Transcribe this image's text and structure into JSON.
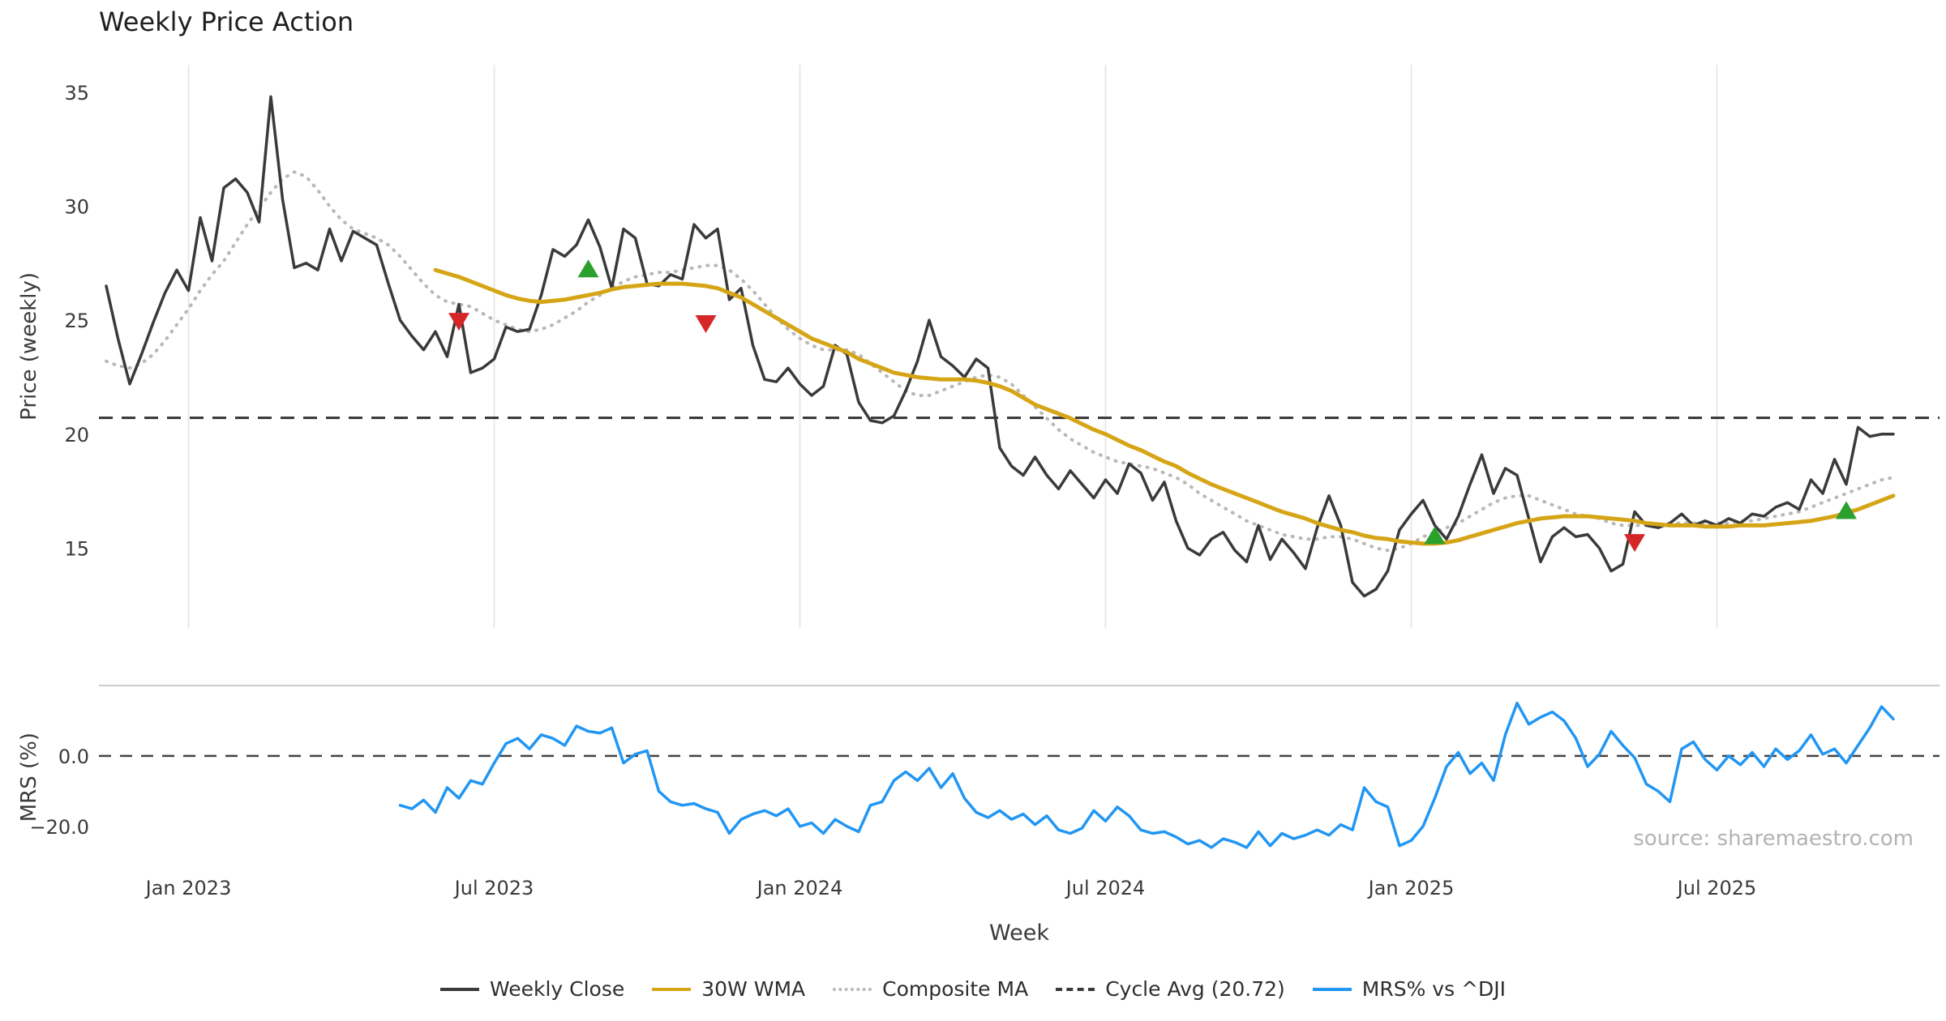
{
  "title": "Weekly Price Action",
  "source_note": "source: sharemaestro.com",
  "colors": {
    "close": "#3a3a3a",
    "wma": "#d6a517",
    "composite": "#b8b8b8",
    "cycle": "#333333",
    "mrs": "#2196f3",
    "buy": "#2ca02c",
    "sell": "#d62728",
    "grid": "#e8e8e8",
    "separator": "#cccccc",
    "tick_text": "#3a3a3a"
  },
  "legend": {
    "items": [
      {
        "label": "Weekly Close",
        "line": "solid",
        "color": "#3a3a3a"
      },
      {
        "label": "30W WMA",
        "line": "solid",
        "color": "#d6a517"
      },
      {
        "label": "Composite MA",
        "line": "dotted",
        "color": "#b8b8b8"
      },
      {
        "label": "Cycle Avg (20.72)",
        "line": "dashed",
        "color": "#3a3a3a"
      },
      {
        "label": "MRS% vs ^DJI",
        "line": "solid",
        "color": "#2196f3"
      }
    ]
  },
  "chart_data": {
    "type": "line",
    "title": "Weekly Price Action",
    "x_label": "Week",
    "x_unit": "week_index",
    "n_points": 153,
    "x_ticks": [
      {
        "i": 7,
        "label": "Jan 2023"
      },
      {
        "i": 33,
        "label": "Jul 2023"
      },
      {
        "i": 59,
        "label": "Jan 2024"
      },
      {
        "i": 85,
        "label": "Jul 2024"
      },
      {
        "i": 111,
        "label": "Jan 2025"
      },
      {
        "i": 137,
        "label": "Jul 2025"
      }
    ],
    "panels": [
      {
        "id": "price",
        "y_label": "Price (weekly)",
        "y_ticks": [
          35,
          30,
          25,
          20,
          15
        ],
        "y_range": [
          11.5,
          36.2
        ],
        "grid_vertical": true,
        "hline": {
          "value": 20.72,
          "label": "Cycle Avg (20.72)",
          "style": "dashed"
        },
        "series": [
          {
            "name": "Weekly Close",
            "color_key": "close",
            "style": "solid",
            "start_index": 0,
            "values": [
              26.5,
              24.2,
              22.2,
              23.5,
              24.9,
              26.2,
              27.2,
              26.3,
              29.5,
              27.6,
              30.8,
              31.2,
              30.6,
              29.3,
              34.8,
              30.3,
              27.3,
              27.5,
              27.2,
              29.0,
              27.6,
              28.9,
              28.6,
              28.3,
              26.6,
              25.0,
              24.3,
              23.7,
              24.5,
              23.4,
              25.7,
              22.7,
              22.9,
              23.3,
              24.7,
              24.5,
              24.6,
              26.1,
              28.1,
              27.8,
              28.3,
              29.4,
              28.2,
              26.4,
              29.0,
              28.6,
              26.6,
              26.5,
              27.0,
              26.8,
              29.2,
              28.6,
              29.0,
              25.9,
              26.4,
              23.9,
              22.4,
              22.3,
              22.9,
              22.2,
              21.7,
              22.1,
              23.9,
              23.5,
              21.4,
              20.6,
              20.5,
              20.8,
              21.9,
              23.2,
              25.0,
              23.4,
              23.0,
              22.5,
              23.3,
              22.9,
              19.4,
              18.6,
              18.2,
              19.0,
              18.2,
              17.6,
              18.4,
              17.8,
              17.2,
              18.0,
              17.4,
              18.7,
              18.3,
              17.1,
              17.9,
              16.2,
              15.0,
              14.7,
              15.4,
              15.7,
              14.9,
              14.4,
              16.0,
              14.5,
              15.4,
              14.8,
              14.1,
              15.9,
              17.3,
              16.0,
              13.5,
              12.9,
              13.2,
              14.0,
              15.8,
              16.5,
              17.1,
              16.0,
              15.4,
              16.4,
              17.8,
              19.1,
              17.4,
              18.5,
              18.2,
              16.3,
              14.4,
              15.5,
              15.9,
              15.5,
              15.6,
              15.0,
              14.0,
              14.3,
              16.6,
              16.0,
              15.9,
              16.1,
              16.5,
              16.0,
              16.2,
              16.0,
              16.3,
              16.1,
              16.5,
              16.4,
              16.8,
              17.0,
              16.7,
              18.0,
              17.4,
              18.9,
              17.8,
              20.3,
              19.9,
              20.0,
              20.0
            ]
          },
          {
            "name": "30W WMA",
            "color_key": "wma",
            "style": "solid",
            "start_index": 28,
            "values": [
              27.2,
              27.05,
              26.9,
              26.7,
              26.5,
              26.3,
              26.1,
              25.95,
              25.85,
              25.8,
              25.85,
              25.9,
              26.0,
              26.1,
              26.2,
              26.35,
              26.45,
              26.5,
              26.55,
              26.6,
              26.6,
              26.6,
              26.55,
              26.5,
              26.4,
              26.2,
              26.0,
              25.7,
              25.4,
              25.1,
              24.8,
              24.5,
              24.2,
              24.0,
              23.8,
              23.6,
              23.3,
              23.1,
              22.9,
              22.7,
              22.6,
              22.5,
              22.45,
              22.4,
              22.4,
              22.4,
              22.35,
              22.25,
              22.1,
              21.9,
              21.6,
              21.3,
              21.1,
              20.9,
              20.7,
              20.45,
              20.2,
              20.0,
              19.75,
              19.5,
              19.3,
              19.05,
              18.8,
              18.6,
              18.3,
              18.05,
              17.8,
              17.6,
              17.4,
              17.2,
              17.0,
              16.8,
              16.6,
              16.45,
              16.3,
              16.1,
              15.95,
              15.8,
              15.7,
              15.55,
              15.45,
              15.4,
              15.3,
              15.25,
              15.2,
              15.2,
              15.25,
              15.35,
              15.5,
              15.65,
              15.8,
              15.95,
              16.1,
              16.2,
              16.3,
              16.35,
              16.4,
              16.4,
              16.4,
              16.35,
              16.3,
              16.25,
              16.2,
              16.1,
              16.05,
              16.0,
              16.0,
              16.0,
              15.95,
              15.95,
              15.95,
              16.0,
              16.0,
              16.0,
              16.05,
              16.1,
              16.15,
              16.2,
              16.3,
              16.4,
              16.55,
              16.7,
              16.9,
              17.1,
              17.3
            ]
          },
          {
            "name": "Composite MA",
            "color_key": "composite",
            "style": "dotted",
            "start_index": 0,
            "values": [
              23.2,
              23.0,
              22.9,
              23.1,
              23.5,
              24.1,
              24.8,
              25.5,
              26.3,
              27.0,
              27.6,
              28.4,
              29.2,
              29.9,
              30.6,
              31.2,
              31.5,
              31.3,
              30.7,
              30.0,
              29.4,
              29.0,
              28.8,
              28.6,
              28.3,
              27.8,
              27.2,
              26.6,
              26.1,
              25.8,
              25.7,
              25.6,
              25.3,
              25.0,
              24.8,
              24.6,
              24.5,
              24.6,
              24.8,
              25.1,
              25.4,
              25.8,
              26.1,
              26.4,
              26.7,
              26.9,
              27.0,
              27.1,
              27.1,
              27.2,
              27.3,
              27.4,
              27.4,
              27.2,
              26.8,
              26.3,
              25.7,
              25.1,
              24.6,
              24.2,
              23.9,
              23.7,
              23.7,
              23.7,
              23.5,
              23.1,
              22.7,
              22.3,
              21.9,
              21.7,
              21.7,
              21.9,
              22.1,
              22.3,
              22.5,
              22.6,
              22.5,
              22.2,
              21.7,
              21.2,
              20.7,
              20.2,
              19.8,
              19.5,
              19.2,
              19.0,
              18.8,
              18.7,
              18.6,
              18.5,
              18.3,
              18.1,
              17.8,
              17.4,
              17.1,
              16.8,
              16.5,
              16.2,
              16.0,
              15.8,
              15.6,
              15.5,
              15.4,
              15.4,
              15.5,
              15.5,
              15.4,
              15.2,
              15.0,
              14.9,
              15.0,
              15.2,
              15.5,
              15.7,
              15.9,
              16.1,
              16.4,
              16.7,
              17.0,
              17.2,
              17.3,
              17.3,
              17.1,
              16.9,
              16.7,
              16.5,
              16.4,
              16.3,
              16.1,
              16.0,
              16.0,
              16.0,
              16.0,
              16.1,
              16.1,
              16.1,
              16.1,
              16.1,
              16.1,
              16.2,
              16.2,
              16.3,
              16.4,
              16.5,
              16.6,
              16.8,
              17.0,
              17.2,
              17.4,
              17.6,
              17.8,
              18.0,
              18.1
            ]
          }
        ],
        "markers": [
          {
            "signal": "sell",
            "index": 30,
            "value": 25.0
          },
          {
            "signal": "buy",
            "index": 41,
            "value": 27.2
          },
          {
            "signal": "sell",
            "index": 51,
            "value": 24.9
          },
          {
            "signal": "buy",
            "index": 113,
            "value": 15.5
          },
          {
            "signal": "sell",
            "index": 130,
            "value": 15.3
          },
          {
            "signal": "buy",
            "index": 148,
            "value": 16.6
          }
        ]
      },
      {
        "id": "mrs",
        "y_label": "MRS (%)",
        "y_ticks": [
          {
            "value": 0,
            "label": "0.0"
          },
          {
            "value": -20,
            "label": "−20.0"
          }
        ],
        "y_range": [
          -32,
          20
        ],
        "grid_vertical": false,
        "hline": {
          "value": 0,
          "style": "dashed"
        },
        "series": [
          {
            "name": "MRS% vs ^DJI",
            "color_key": "mrs",
            "style": "solid",
            "start_index": 25,
            "values": [
              -14,
              -15,
              -12.5,
              -16,
              -9,
              -12,
              -7,
              -8,
              -2,
              3.5,
              5,
              2,
              6,
              5,
              3,
              8.5,
              7,
              6.5,
              8,
              -2,
              0.5,
              1.5,
              -10,
              -13,
              -14,
              -13.5,
              -15,
              -16,
              -22,
              -18,
              -16.5,
              -15.5,
              -17,
              -15,
              -20,
              -19,
              -22,
              -18,
              -20,
              -21.5,
              -14,
              -13,
              -7,
              -4.5,
              -7,
              -3.5,
              -9,
              -5,
              -12,
              -16,
              -17.5,
              -15.5,
              -18,
              -16.5,
              -19.5,
              -17,
              -21,
              -22,
              -20.5,
              -15.5,
              -18.5,
              -14.5,
              -17,
              -21,
              -22,
              -21.5,
              -23,
              -25,
              -24,
              -26,
              -23.5,
              -24.5,
              -26,
              -21.5,
              -25.5,
              -22,
              -23.5,
              -22.5,
              -21,
              -22.5,
              -19.5,
              -21,
              -9,
              -13,
              -14.5,
              -25.5,
              -24,
              -20,
              -12,
              -3,
              1,
              -5,
              -2,
              -7,
              6,
              15,
              9,
              11,
              12.5,
              10,
              5,
              -3,
              0.5,
              7,
              3,
              -0.5,
              -8,
              -10,
              -13,
              2,
              4,
              -1,
              -4,
              0,
              -2.5,
              1,
              -3,
              2,
              -1,
              1.5,
              6,
              0.5,
              2,
              -2,
              3,
              8,
              14,
              10.5
            ]
          }
        ]
      }
    ]
  }
}
